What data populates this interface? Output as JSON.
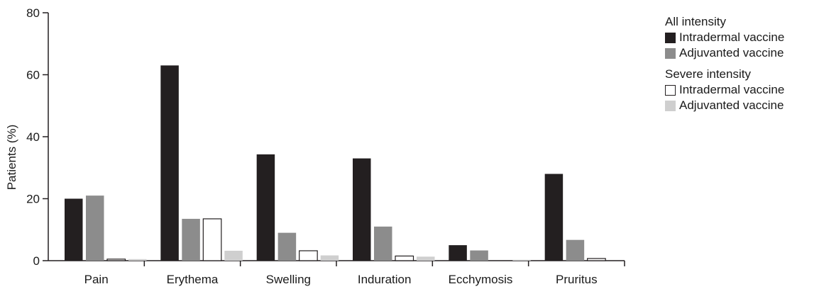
{
  "chart_data": {
    "type": "bar",
    "categories": [
      "Pain",
      "Erythema",
      "Swelling",
      "Induration",
      "Ecchymosis",
      "Pruritus"
    ],
    "series": [
      {
        "name": "Intradermal vaccine",
        "group": "All intensity",
        "color": "#231f20",
        "values": [
          20,
          63,
          34.3,
          33,
          5,
          28
        ]
      },
      {
        "name": "Adjuvanted vaccine",
        "group": "All intensity",
        "color": "#8c8c8c",
        "values": [
          21,
          13.5,
          9,
          11,
          3.3,
          6.7
        ]
      },
      {
        "name": "Intradermal vaccine",
        "group": "Severe intensity",
        "color": "#ffffff",
        "values": [
          0.5,
          13.5,
          3.2,
          1.5,
          0,
          0.7
        ]
      },
      {
        "name": "Adjuvanted vaccine",
        "group": "Severe intensity",
        "color": "#cfcfcf",
        "values": [
          0.5,
          3.2,
          1.7,
          1.3,
          0.3,
          0
        ]
      }
    ],
    "title": "",
    "xlabel": "",
    "ylabel": "Patients (%)",
    "ylim": [
      0,
      80
    ],
    "yticks": [
      0,
      20,
      40,
      60,
      80
    ],
    "grid": false,
    "legend_position": "right"
  },
  "legend": {
    "groups": [
      {
        "title": "All intensity",
        "items": [
          "Intradermal vaccine",
          "Adjuvanted vaccine"
        ]
      },
      {
        "title": "Severe intensity",
        "items": [
          "Intradermal vaccine",
          "Adjuvanted vaccine"
        ]
      }
    ]
  }
}
